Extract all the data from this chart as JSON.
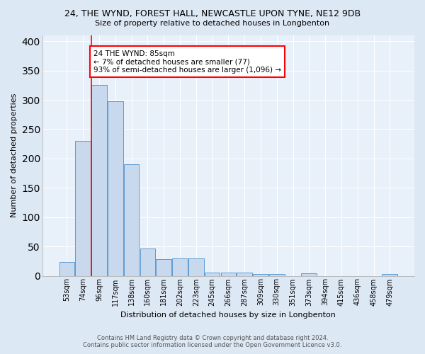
{
  "title": "24, THE WYND, FOREST HALL, NEWCASTLE UPON TYNE, NE12 9DB",
  "subtitle": "Size of property relative to detached houses in Longbenton",
  "xlabel": "Distribution of detached houses by size in Longbenton",
  "ylabel": "Number of detached properties",
  "footer_line1": "Contains HM Land Registry data © Crown copyright and database right 2024.",
  "footer_line2": "Contains public sector information licensed under the Open Government Licence v3.0.",
  "categories": [
    "53sqm",
    "74sqm",
    "96sqm",
    "117sqm",
    "138sqm",
    "160sqm",
    "181sqm",
    "202sqm",
    "223sqm",
    "245sqm",
    "266sqm",
    "287sqm",
    "309sqm",
    "330sqm",
    "351sqm",
    "373sqm",
    "394sqm",
    "415sqm",
    "436sqm",
    "458sqm",
    "479sqm"
  ],
  "values": [
    23,
    230,
    325,
    298,
    190,
    46,
    28,
    29,
    29,
    5,
    6,
    5,
    3,
    3,
    0,
    4,
    0,
    0,
    0,
    0,
    3
  ],
  "bar_color": "#c9d9ed",
  "bar_edge_color": "#5b9bd5",
  "background_color": "#dde8f5",
  "plot_bg_color": "#e8f0fa",
  "grid_color": "#ffffff",
  "red_line_x": 1.5,
  "annotation_text": "24 THE WYND: 85sqm\n← 7% of detached houses are smaller (77)\n93% of semi-detached houses are larger (1,096) →",
  "annotation_box_color": "white",
  "annotation_box_edge_color": "red",
  "ylim": [
    0,
    410
  ],
  "yticks": [
    0,
    50,
    100,
    150,
    200,
    250,
    300,
    350,
    400
  ]
}
